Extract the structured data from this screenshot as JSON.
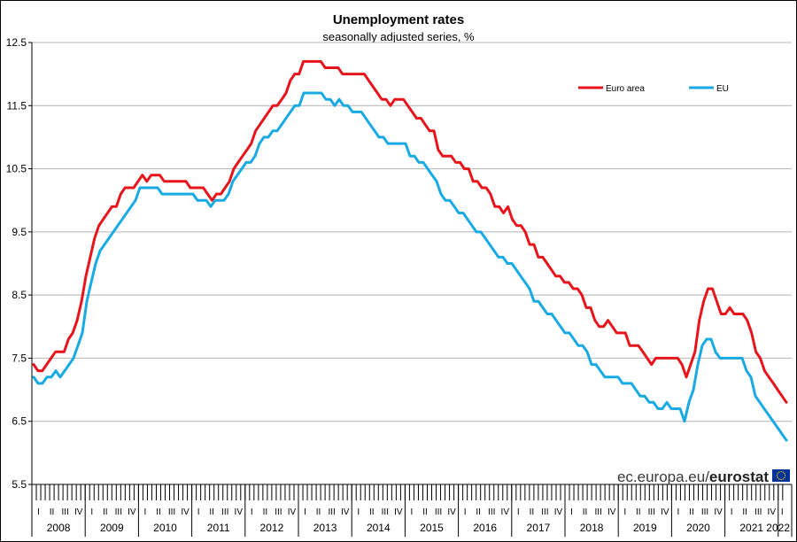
{
  "chart_data": {
    "type": "line",
    "title": "Unemployment rates",
    "subtitle": "seasonally adjusted series, %",
    "ylim": [
      5.5,
      12.5
    ],
    "yticks": [
      "5.5",
      "6.5",
      "7.5",
      "8.5",
      "9.5",
      "10.5",
      "11.5",
      "12.5"
    ],
    "grid": true,
    "legend_placement": "top-right",
    "quarter_labels": [
      "I",
      "II",
      "III",
      "IV"
    ],
    "years": [
      "2008",
      "2009",
      "2010",
      "2011",
      "2012",
      "2013",
      "2014",
      "2015",
      "2016",
      "2017",
      "2018",
      "2019",
      "2020",
      "2021",
      "2022"
    ],
    "x_start": "2008-01",
    "x_end": "2022-01",
    "series": [
      {
        "name": "Euro area",
        "color": "#e8141b",
        "values": [
          7.4,
          7.3,
          7.3,
          7.4,
          7.5,
          7.6,
          7.6,
          7.6,
          7.8,
          7.9,
          8.1,
          8.4,
          8.8,
          9.1,
          9.4,
          9.6,
          9.7,
          9.8,
          9.9,
          9.9,
          10.1,
          10.2,
          10.2,
          10.2,
          10.3,
          10.4,
          10.3,
          10.4,
          10.4,
          10.4,
          10.3,
          10.3,
          10.3,
          10.3,
          10.3,
          10.3,
          10.2,
          10.2,
          10.2,
          10.2,
          10.1,
          10.0,
          10.1,
          10.1,
          10.2,
          10.3,
          10.5,
          10.6,
          10.7,
          10.8,
          10.9,
          11.1,
          11.2,
          11.3,
          11.4,
          11.5,
          11.5,
          11.6,
          11.7,
          11.9,
          12.0,
          12.0,
          12.2,
          12.2,
          12.2,
          12.2,
          12.2,
          12.1,
          12.1,
          12.1,
          12.1,
          12.0,
          12.0,
          12.0,
          12.0,
          12.0,
          12.0,
          11.9,
          11.8,
          11.7,
          11.6,
          11.6,
          11.5,
          11.6,
          11.6,
          11.6,
          11.5,
          11.4,
          11.3,
          11.3,
          11.2,
          11.1,
          11.1,
          10.8,
          10.7,
          10.7,
          10.7,
          10.6,
          10.6,
          10.5,
          10.5,
          10.3,
          10.3,
          10.2,
          10.2,
          10.1,
          9.9,
          9.9,
          9.8,
          9.9,
          9.7,
          9.6,
          9.6,
          9.5,
          9.3,
          9.3,
          9.1,
          9.1,
          9.0,
          8.9,
          8.8,
          8.8,
          8.7,
          8.7,
          8.6,
          8.6,
          8.5,
          8.3,
          8.3,
          8.1,
          8.0,
          8.0,
          8.1,
          8.0,
          7.9,
          7.9,
          7.9,
          7.7,
          7.7,
          7.7,
          7.6,
          7.5,
          7.4,
          7.5,
          7.5,
          7.5,
          7.5,
          7.5,
          7.5,
          7.4,
          7.2,
          7.4,
          7.6,
          8.1,
          8.4,
          8.6,
          8.6,
          8.4,
          8.2,
          8.2,
          8.3,
          8.2,
          8.2,
          8.2,
          8.1,
          7.9,
          7.6,
          7.5,
          7.3,
          7.2,
          7.1,
          7.0,
          6.9,
          6.8
        ]
      },
      {
        "name": "EU",
        "color": "#1aaae3",
        "values": [
          7.2,
          7.1,
          7.1,
          7.2,
          7.2,
          7.3,
          7.2,
          7.3,
          7.4,
          7.5,
          7.7,
          7.9,
          8.4,
          8.7,
          9.0,
          9.2,
          9.3,
          9.4,
          9.5,
          9.6,
          9.7,
          9.8,
          9.9,
          10.0,
          10.2,
          10.2,
          10.2,
          10.2,
          10.2,
          10.1,
          10.1,
          10.1,
          10.1,
          10.1,
          10.1,
          10.1,
          10.1,
          10.0,
          10.0,
          10.0,
          9.9,
          10.0,
          10.0,
          10.0,
          10.1,
          10.3,
          10.4,
          10.5,
          10.6,
          10.6,
          10.7,
          10.9,
          11.0,
          11.0,
          11.1,
          11.1,
          11.2,
          11.3,
          11.4,
          11.5,
          11.5,
          11.7,
          11.7,
          11.7,
          11.7,
          11.7,
          11.6,
          11.6,
          11.5,
          11.6,
          11.5,
          11.5,
          11.4,
          11.4,
          11.4,
          11.3,
          11.2,
          11.1,
          11.0,
          11.0,
          10.9,
          10.9,
          10.9,
          10.9,
          10.9,
          10.7,
          10.7,
          10.6,
          10.6,
          10.5,
          10.4,
          10.3,
          10.1,
          10.0,
          10.0,
          9.9,
          9.8,
          9.8,
          9.7,
          9.6,
          9.5,
          9.5,
          9.4,
          9.3,
          9.2,
          9.1,
          9.1,
          9.0,
          9.0,
          8.9,
          8.8,
          8.7,
          8.6,
          8.4,
          8.4,
          8.3,
          8.2,
          8.2,
          8.1,
          8.0,
          7.9,
          7.9,
          7.8,
          7.7,
          7.7,
          7.6,
          7.4,
          7.4,
          7.3,
          7.2,
          7.2,
          7.2,
          7.2,
          7.1,
          7.1,
          7.1,
          7.0,
          6.9,
          6.9,
          6.8,
          6.8,
          6.7,
          6.7,
          6.8,
          6.7,
          6.7,
          6.7,
          6.5,
          6.8,
          7.0,
          7.4,
          7.7,
          7.8,
          7.8,
          7.6,
          7.5,
          7.5,
          7.5,
          7.5,
          7.5,
          7.5,
          7.3,
          7.2,
          6.9,
          6.8,
          6.7,
          6.6,
          6.5,
          6.4,
          6.3,
          6.2
        ]
      }
    ]
  },
  "source": {
    "domain_text": "ec.europa.eu/",
    "brand_text": "eurostat",
    "flag_color": "#003399",
    "star_color": "#ffcc00"
  }
}
